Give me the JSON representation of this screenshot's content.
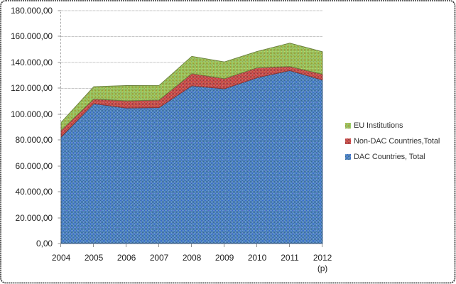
{
  "chart_data": {
    "type": "area",
    "subtype": "stacked",
    "title": "",
    "xlabel": "",
    "ylabel": "",
    "categories": [
      "2004",
      "2005",
      "2006",
      "2007",
      "2008",
      "2009",
      "2010",
      "2011",
      "2012"
    ],
    "last_category_note": "(p)",
    "series": [
      {
        "name": "DAC Countries, Total",
        "color": "#4F81BD",
        "values": [
          82300,
          108100,
          104700,
          105100,
          121900,
          119600,
          128200,
          133700,
          126400
        ]
      },
      {
        "name": "Non-DAC Countries,Total",
        "color": "#C0504D",
        "values": [
          5200,
          3600,
          5600,
          5800,
          9400,
          7800,
          7600,
          3100,
          4500
        ]
      },
      {
        "name": "EU Institutions",
        "color": "#9BBB59",
        "values": [
          6100,
          9500,
          11800,
          11300,
          13400,
          13000,
          12700,
          18100,
          17300
        ]
      }
    ],
    "ylim": [
      0,
      180000
    ],
    "y_tick_step": 20000,
    "y_ticks": [
      "0,00",
      "20.000,00",
      "40.000,00",
      "60.000,00",
      "80.000,00",
      "100.000,00",
      "120.000,00",
      "140.000,00",
      "160.000,00",
      "180.000,00"
    ],
    "grid": "horizontal-dashed",
    "legend_position": "right",
    "legend": [
      "EU Institutions",
      "Non-DAC Countries,Total",
      "DAC Countries, Total"
    ]
  }
}
